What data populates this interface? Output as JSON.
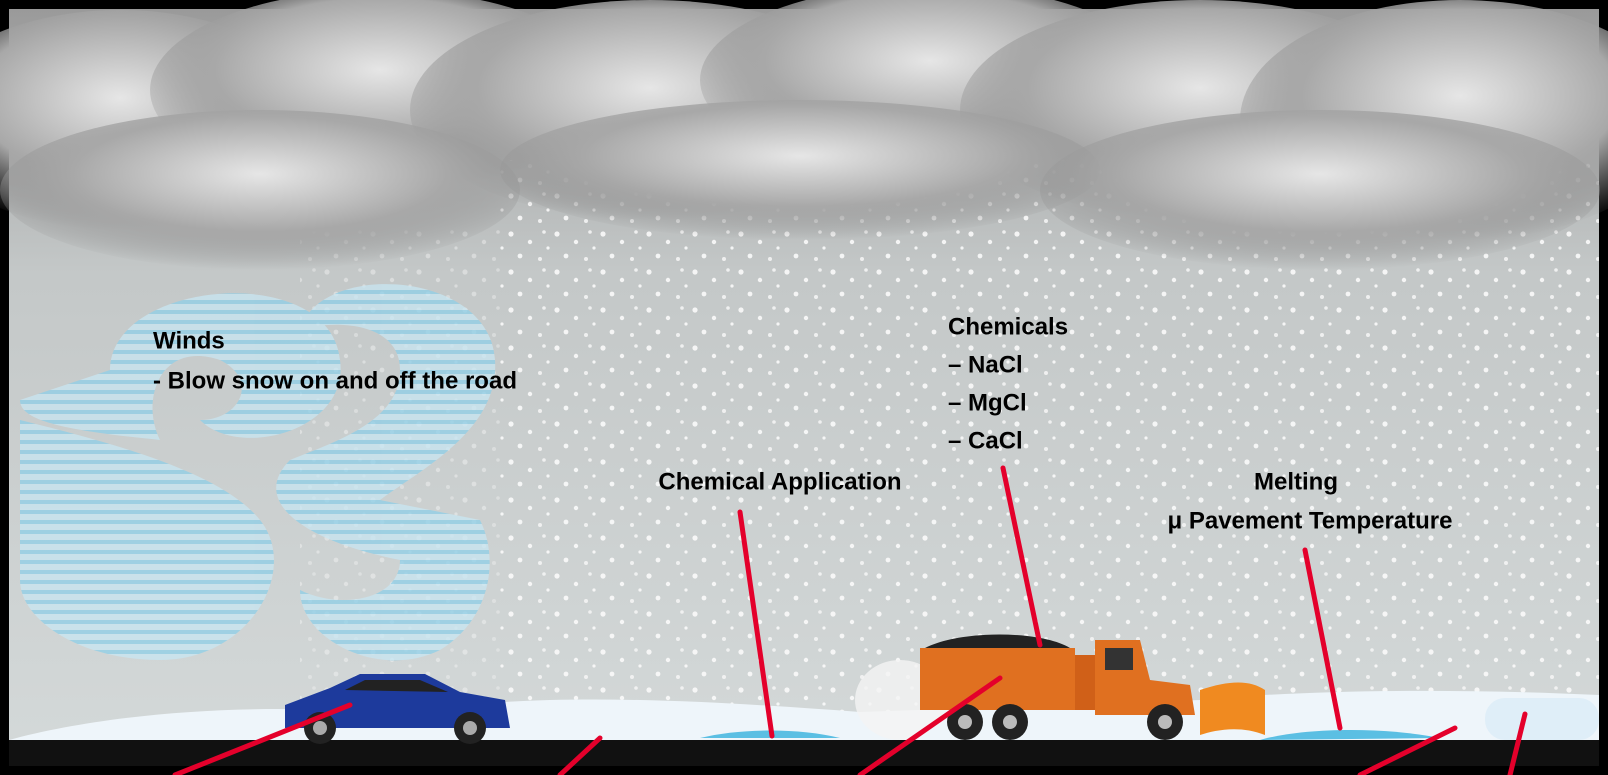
{
  "labels": {
    "winds": {
      "title": "Winds",
      "detail": "- Blow snow on and off the road"
    },
    "chemicals": {
      "title": "Chemicals",
      "items": [
        "– NaCl",
        "– MgCl",
        "– CaCl"
      ]
    },
    "chemical_application": "Chemical Application",
    "melting": {
      "title": "Melting",
      "detail": "μ Pavement Temperature"
    }
  }
}
